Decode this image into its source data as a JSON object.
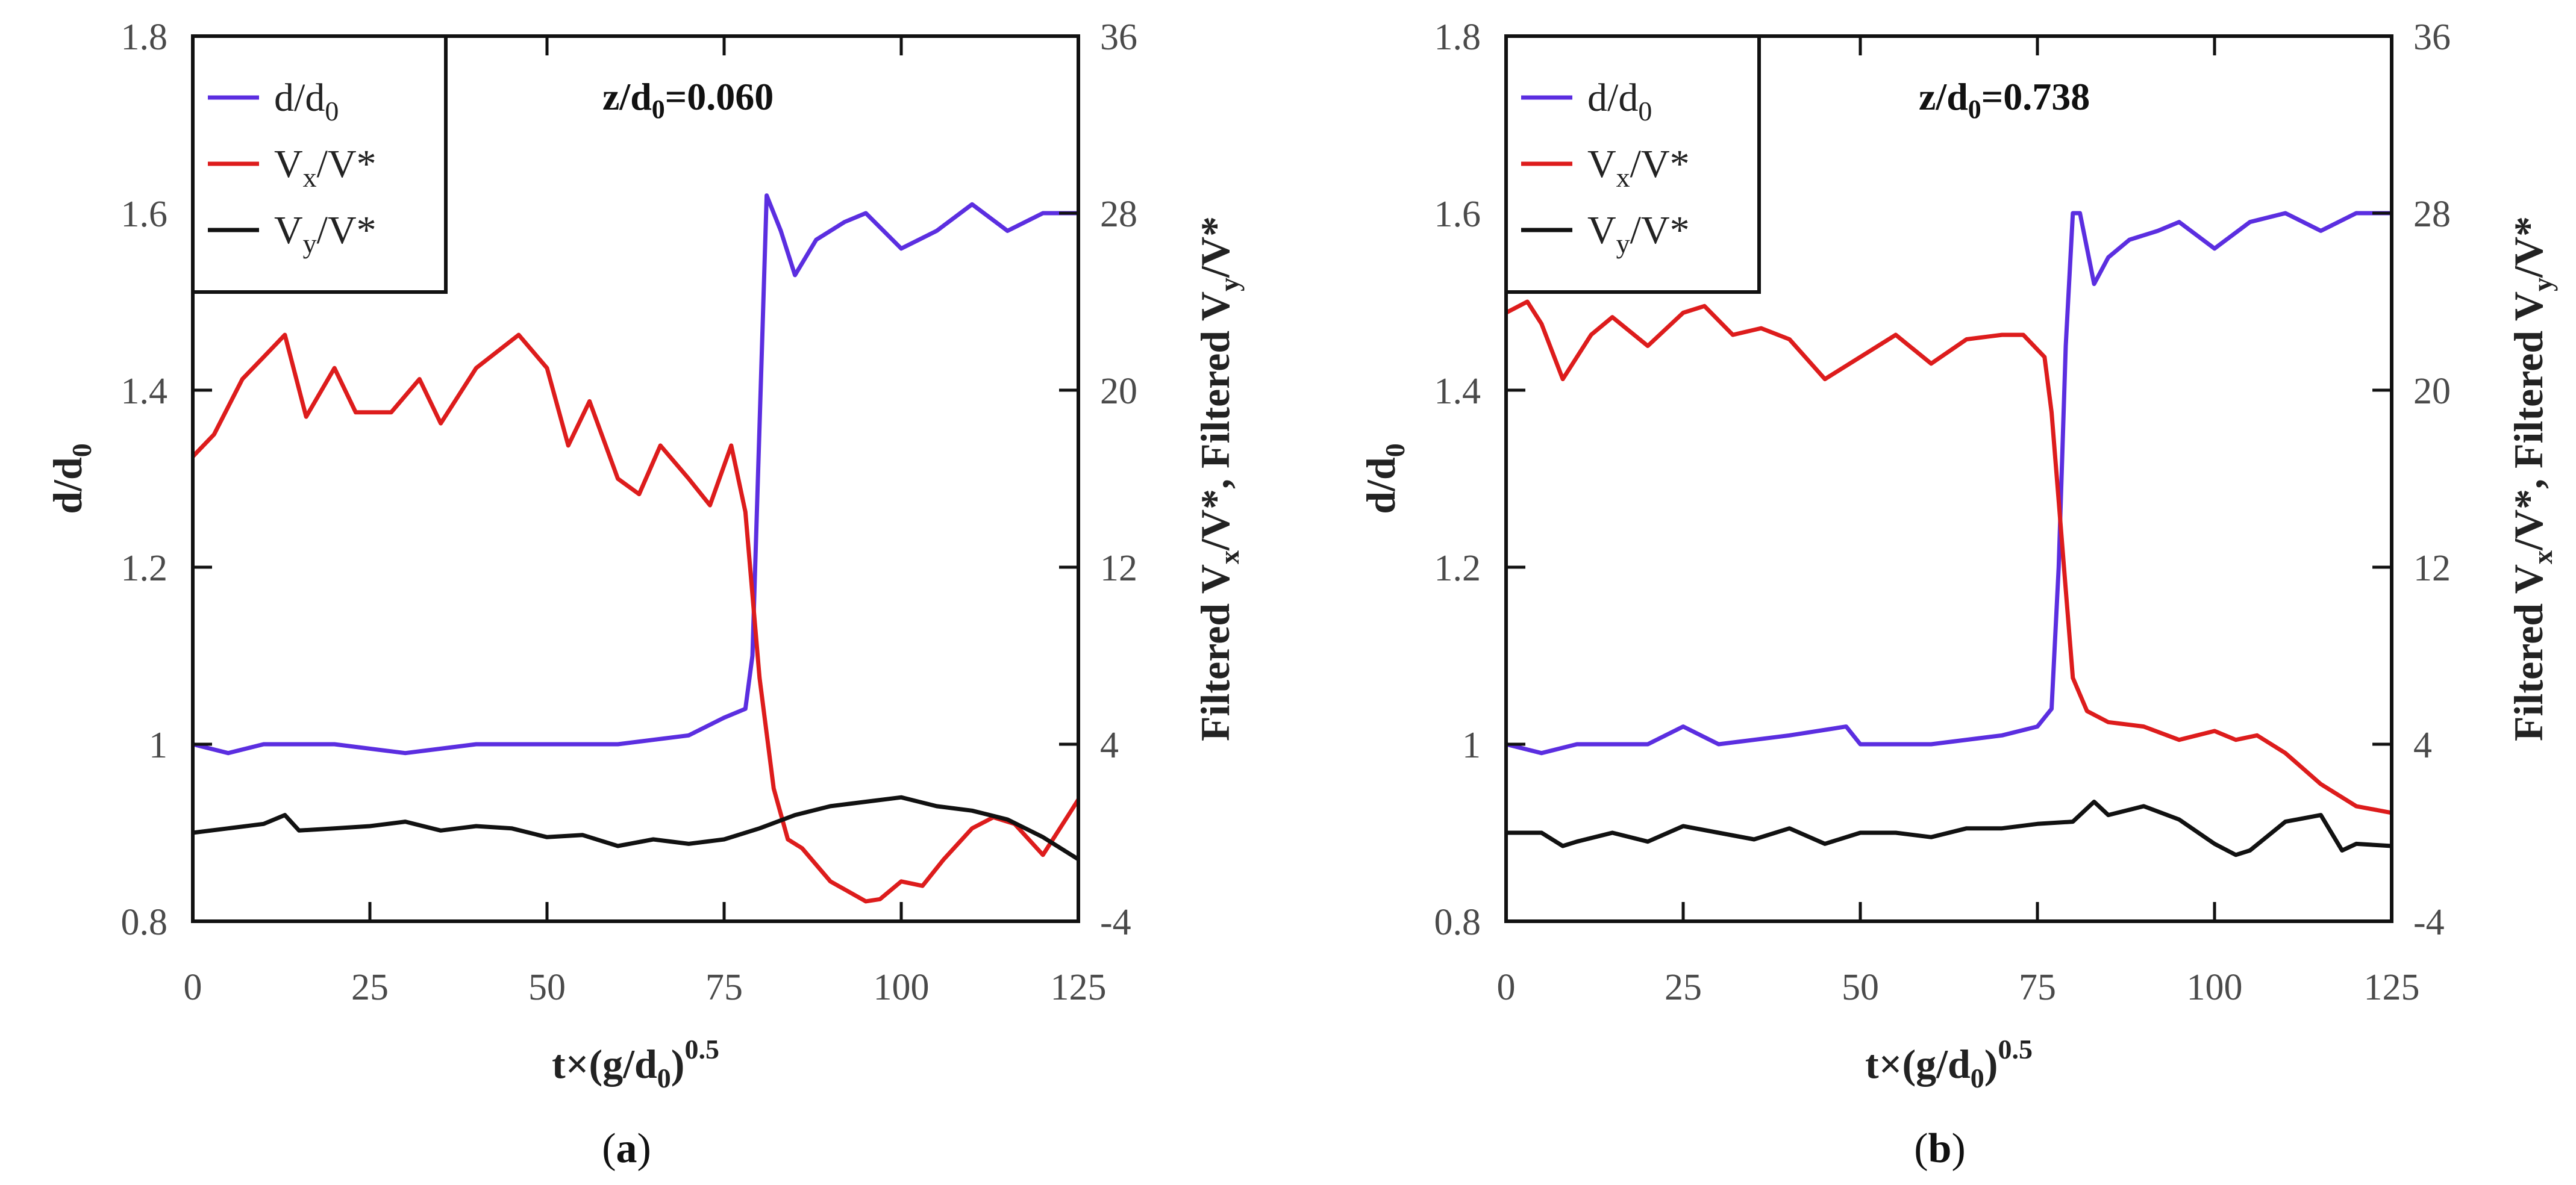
{
  "figure": {
    "captions": [
      "(a)",
      "(b)"
    ],
    "caption_parts": [
      {
        "open": "(",
        "letter": "a",
        "close": ")"
      },
      {
        "open": "(",
        "letter": "b",
        "close": ")"
      }
    ]
  },
  "colors": {
    "d": "#5b2ee0",
    "vx": "#dd1c1c",
    "vy": "#111111",
    "axis": "#111111"
  },
  "chart_data": [
    {
      "type": "line",
      "panel": "a",
      "annotation": {
        "base": "z/d",
        "sub": "0",
        "value": "=0.060"
      },
      "xlabel": {
        "base": "t×(g/d",
        "sub": "0",
        "close": ")",
        "sup": "0.5"
      },
      "ylabel": {
        "base": "d/d",
        "sub": "0"
      },
      "y2label": {
        "p1": "Filtered V",
        "s1": "x",
        "p2": "/V*, Filtered V",
        "s2": "y",
        "p3": "/V*"
      },
      "xlim": [
        0,
        125
      ],
      "ylim": [
        0.8,
        1.8
      ],
      "y2lim": [
        -4,
        36
      ],
      "xticks": [
        "0",
        "25",
        "50",
        "75",
        "100",
        "125"
      ],
      "yticks": [
        "0.8",
        "1",
        "1.2",
        "1.4",
        "1.6",
        "1.8"
      ],
      "y2ticks": [
        "-4",
        "4",
        "12",
        "20",
        "28",
        "36"
      ],
      "legend": [
        {
          "base": "d/d",
          "sub": "0",
          "tail": ""
        },
        {
          "base": "V",
          "sub": "x",
          "tail": "/V*"
        },
        {
          "base": "V",
          "sub": "y",
          "tail": "/V*"
        }
      ],
      "series": [
        {
          "name": "d/d0",
          "axis": "left",
          "x": [
            0,
            5,
            10,
            20,
            30,
            40,
            50,
            60,
            70,
            75,
            78,
            79,
            80,
            81,
            83,
            85,
            88,
            92,
            95,
            100,
            105,
            110,
            115,
            120,
            125
          ],
          "y": [
            1.0,
            0.99,
            1.0,
            1.0,
            0.99,
            1.0,
            1.0,
            1.0,
            1.01,
            1.03,
            1.04,
            1.1,
            1.36,
            1.62,
            1.58,
            1.53,
            1.57,
            1.59,
            1.6,
            1.56,
            1.58,
            1.61,
            1.58,
            1.6,
            1.6
          ]
        },
        {
          "name": "Vx/V*",
          "axis": "right",
          "x": [
            0,
            3,
            7,
            10,
            13,
            16,
            20,
            23,
            28,
            32,
            35,
            40,
            46,
            50,
            53,
            56,
            60,
            63,
            66,
            70,
            73,
            76,
            78,
            80,
            82,
            84,
            86,
            90,
            95,
            97,
            100,
            103,
            106,
            110,
            113,
            116,
            120,
            125
          ],
          "y": [
            17,
            18,
            20.5,
            21.5,
            22.5,
            18.8,
            21,
            19,
            19,
            20.5,
            18.5,
            21,
            22.5,
            21,
            17.5,
            19.5,
            16,
            15.3,
            17.5,
            16,
            14.8,
            17.5,
            14.5,
            7,
            2,
            -0.3,
            -0.7,
            -2.2,
            -3.1,
            -3,
            -2.2,
            -2.4,
            -1.2,
            0.2,
            0.7,
            0.4,
            -1,
            1.5
          ]
        },
        {
          "name": "Vy/V*",
          "axis": "right",
          "x": [
            0,
            5,
            10,
            13,
            15,
            20,
            25,
            30,
            35,
            40,
            45,
            50,
            55,
            60,
            65,
            70,
            75,
            80,
            85,
            90,
            95,
            100,
            105,
            110,
            115,
            120,
            125
          ],
          "y": [
            0,
            0.2,
            0.4,
            0.8,
            0.1,
            0.2,
            0.3,
            0.5,
            0.1,
            0.3,
            0.2,
            -0.2,
            -0.1,
            -0.6,
            -0.3,
            -0.5,
            -0.3,
            0.2,
            0.8,
            1.2,
            1.4,
            1.6,
            1.2,
            1,
            0.6,
            -0.2,
            -1.2
          ]
        }
      ]
    },
    {
      "type": "line",
      "panel": "b",
      "annotation": {
        "base": "z/d",
        "sub": "0",
        "value": "=0.738"
      },
      "xlabel": {
        "base": "t×(g/d",
        "sub": "0",
        "close": ")",
        "sup": "0.5"
      },
      "ylabel": {
        "base": "d/d",
        "sub": "0"
      },
      "y2label": {
        "p1": "Filtered V",
        "s1": "x",
        "p2": "/V*, Filtered V",
        "s2": "y",
        "p3": "/V*"
      },
      "xlim": [
        0,
        125
      ],
      "ylim": [
        0.8,
        1.8
      ],
      "y2lim": [
        -4,
        36
      ],
      "xticks": [
        "0",
        "25",
        "50",
        "75",
        "100",
        "125"
      ],
      "yticks": [
        "0.8",
        "1",
        "1.2",
        "1.4",
        "1.6",
        "1.8"
      ],
      "y2ticks": [
        "-4",
        "4",
        "12",
        "20",
        "28",
        "36"
      ],
      "legend": [
        {
          "base": "d/d",
          "sub": "0",
          "tail": ""
        },
        {
          "base": "V",
          "sub": "x",
          "tail": "/V*"
        },
        {
          "base": "V",
          "sub": "y",
          "tail": "/V*"
        }
      ],
      "series": [
        {
          "name": "d/d0",
          "axis": "left",
          "x": [
            0,
            5,
            10,
            20,
            25,
            30,
            40,
            48,
            50,
            60,
            70,
            75,
            77,
            78,
            79,
            80,
            81,
            83,
            85,
            88,
            92,
            95,
            100,
            105,
            110,
            115,
            120,
            125
          ],
          "y": [
            1.0,
            0.99,
            1.0,
            1.0,
            1.02,
            1.0,
            1.01,
            1.02,
            1.0,
            1.0,
            1.01,
            1.02,
            1.04,
            1.2,
            1.45,
            1.6,
            1.6,
            1.52,
            1.55,
            1.57,
            1.58,
            1.59,
            1.56,
            1.59,
            1.6,
            1.58,
            1.6,
            1.6
          ]
        },
        {
          "name": "Vx/V*",
          "axis": "right",
          "x": [
            0,
            3,
            5,
            8,
            12,
            15,
            20,
            25,
            28,
            32,
            36,
            40,
            45,
            50,
            55,
            60,
            65,
            70,
            73,
            76,
            77,
            78,
            79,
            80,
            82,
            85,
            90,
            95,
            100,
            103,
            106,
            110,
            115,
            120,
            125
          ],
          "y": [
            23.5,
            24,
            23,
            20.5,
            22.5,
            23.3,
            22,
            23.5,
            23.8,
            22.5,
            22.8,
            22.3,
            20.5,
            21.5,
            22.5,
            21.2,
            22.3,
            22.5,
            22.5,
            21.5,
            19,
            15,
            11,
            7,
            5.5,
            5,
            4.8,
            4.2,
            4.6,
            4.2,
            4.4,
            3.6,
            2.2,
            1.2,
            0.9
          ]
        },
        {
          "name": "Vy/V*",
          "axis": "right",
          "x": [
            0,
            5,
            8,
            10,
            15,
            20,
            25,
            30,
            35,
            40,
            45,
            50,
            55,
            60,
            65,
            70,
            75,
            80,
            83,
            85,
            90,
            95,
            100,
            103,
            105,
            110,
            115,
            118,
            120,
            125
          ],
          "y": [
            0,
            0,
            -0.6,
            -0.4,
            0,
            -0.4,
            0.3,
            0,
            -0.3,
            0.2,
            -0.5,
            0,
            0,
            -0.2,
            0.2,
            0.2,
            0.4,
            0.5,
            1.4,
            0.8,
            1.2,
            0.6,
            -0.5,
            -1,
            -0.8,
            0.5,
            0.8,
            -0.8,
            -0.5,
            -0.6
          ]
        }
      ]
    }
  ]
}
